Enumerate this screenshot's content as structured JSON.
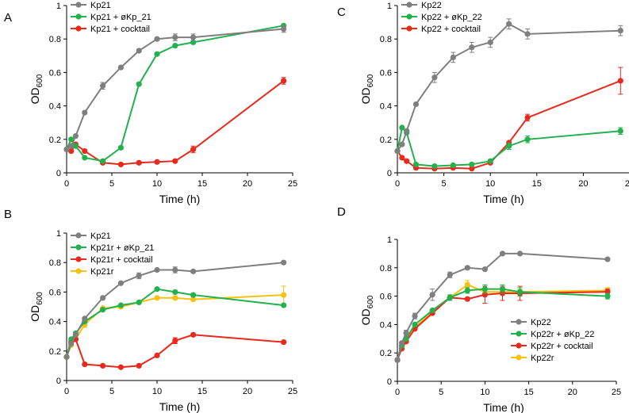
{
  "colors": {
    "grey": "#7f7f7f",
    "green": "#22b14c",
    "red": "#e8291c",
    "yellow": "#f5c211"
  },
  "chart_data": [
    {
      "type": "line",
      "panel": "A",
      "xlabel": "Time (h)",
      "ylabel_main": "OD",
      "ylabel_sub": "600",
      "xlim": [
        0,
        25
      ],
      "ylim": [
        0,
        1
      ],
      "xticks": [
        0,
        5,
        10,
        15,
        20,
        25
      ],
      "yticks": [
        0,
        0.2,
        0.4,
        0.6,
        0.8,
        1
      ],
      "ytick_labels": [
        "0",
        "0.2",
        "0.4",
        "0.6",
        "0.8",
        "1"
      ],
      "legend_position": "top-left",
      "series": [
        {
          "name": "Kp21",
          "color": "#7f7f7f",
          "x": [
            0,
            0.5,
            1,
            2,
            4,
            6,
            8,
            10,
            12,
            14,
            24
          ],
          "y": [
            0.14,
            0.16,
            0.22,
            0.36,
            0.52,
            0.63,
            0.73,
            0.8,
            0.81,
            0.81,
            0.86
          ],
          "err": [
            0,
            0,
            0,
            0,
            0.02,
            0,
            0,
            0,
            0.02,
            0.02,
            0.02
          ]
        },
        {
          "name": "Kp21 + øKp_21",
          "color": "#22b14c",
          "x": [
            0,
            0.5,
            1,
            2,
            4,
            6,
            8,
            10,
            12,
            14,
            24
          ],
          "y": [
            0.14,
            0.2,
            0.16,
            0.09,
            0.07,
            0.15,
            0.53,
            0.71,
            0.76,
            0.78,
            0.88
          ],
          "err": [
            0,
            0,
            0,
            0,
            0,
            0,
            0,
            0,
            0,
            0,
            0
          ]
        },
        {
          "name": "Kp21 + cocktail",
          "color": "#e8291c",
          "x": [
            0,
            0.5,
            1,
            2,
            4,
            6,
            8,
            10,
            12,
            14,
            24
          ],
          "y": [
            0.14,
            0.13,
            0.17,
            0.13,
            0.06,
            0.05,
            0.06,
            0.065,
            0.07,
            0.14,
            0.55
          ],
          "err": [
            0,
            0,
            0,
            0,
            0,
            0,
            0,
            0,
            0,
            0.02,
            0.02
          ]
        }
      ]
    },
    {
      "type": "line",
      "panel": "B",
      "xlabel": "Time (h)",
      "ylabel_main": "OD",
      "ylabel_sub": "600",
      "xlim": [
        0,
        25
      ],
      "ylim": [
        0,
        1
      ],
      "xticks": [
        0,
        5,
        10,
        15,
        20,
        25
      ],
      "yticks": [
        0,
        0.2,
        0.4,
        0.6,
        0.8,
        1
      ],
      "ytick_labels": [
        "0",
        "0.2",
        "0.4",
        "0.6",
        "0.8",
        "1"
      ],
      "legend_position": "top-left",
      "series": [
        {
          "name": "Kp21",
          "color": "#7f7f7f",
          "x": [
            0,
            0.5,
            1,
            2,
            4,
            6,
            8,
            10,
            12,
            14,
            24
          ],
          "y": [
            0.16,
            0.25,
            0.31,
            0.42,
            0.56,
            0.66,
            0.71,
            0.75,
            0.75,
            0.74,
            0.8
          ],
          "err": [
            0,
            0,
            0,
            0,
            0,
            0,
            0.02,
            0,
            0.02,
            0,
            0.01
          ]
        },
        {
          "name": "Kp21r + øKp_21",
          "color": "#22b14c",
          "x": [
            0,
            0.5,
            1,
            2,
            4,
            6,
            8,
            10,
            12,
            14,
            24
          ],
          "y": [
            0.16,
            0.28,
            0.32,
            0.4,
            0.48,
            0.51,
            0.53,
            0.62,
            0.6,
            0.58,
            0.51
          ],
          "err": [
            0,
            0,
            0,
            0,
            0,
            0,
            0,
            0,
            0,
            0,
            0.01
          ]
        },
        {
          "name": "Kp21r + cocktail",
          "color": "#e8291c",
          "x": [
            0,
            0.5,
            1,
            2,
            4,
            6,
            8,
            10,
            12,
            14,
            24
          ],
          "y": [
            0.16,
            0.26,
            0.28,
            0.11,
            0.1,
            0.09,
            0.1,
            0.17,
            0.27,
            0.31,
            0.26
          ],
          "err": [
            0,
            0,
            0,
            0,
            0,
            0,
            0,
            0,
            0.02,
            0,
            0.01
          ]
        },
        {
          "name": "Kp21r",
          "color": "#f5c211",
          "x": [
            0,
            0.5,
            1,
            2,
            4,
            6,
            8,
            10,
            12,
            14,
            24
          ],
          "y": [
            0.16,
            0.24,
            0.28,
            0.38,
            0.49,
            0.5,
            0.53,
            0.56,
            0.56,
            0.55,
            0.58
          ],
          "err": [
            0,
            0,
            0,
            0.02,
            0,
            0,
            0,
            0,
            0.01,
            0.01,
            0.06
          ]
        }
      ]
    },
    {
      "type": "line",
      "panel": "C",
      "xlabel": "Time (h)",
      "ylabel_main": "OD",
      "ylabel_sub": "600",
      "xlim": [
        0,
        25
      ],
      "ylim": [
        0,
        1
      ],
      "xticks": [
        0,
        5,
        10,
        15,
        20,
        25
      ],
      "yticks": [
        0,
        0.2,
        0.4,
        0.6,
        0.8,
        1
      ],
      "ytick_labels": [
        "0",
        "0.2",
        "0.4",
        "0.6",
        "0.8",
        "1"
      ],
      "legend_position": "top-left",
      "series": [
        {
          "name": "Kp22",
          "color": "#7f7f7f",
          "x": [
            0,
            0.5,
            1,
            2,
            4,
            6,
            8,
            10,
            12,
            14,
            24
          ],
          "y": [
            0.13,
            0.17,
            0.25,
            0.41,
            0.57,
            0.69,
            0.75,
            0.78,
            0.89,
            0.83,
            0.85
          ],
          "err": [
            0,
            0,
            0,
            0,
            0.03,
            0.03,
            0.03,
            0.03,
            0.03,
            0.03,
            0.03
          ]
        },
        {
          "name": "Kp22 + øKp_22",
          "color": "#22b14c",
          "x": [
            0,
            0.5,
            1,
            2,
            4,
            6,
            8,
            10,
            12,
            14,
            24
          ],
          "y": [
            0.13,
            0.27,
            0.24,
            0.05,
            0.04,
            0.045,
            0.05,
            0.07,
            0.16,
            0.2,
            0.25
          ],
          "err": [
            0,
            0,
            0,
            0,
            0,
            0,
            0,
            0,
            0.02,
            0.02,
            0.02
          ]
        },
        {
          "name": "Kp22 + cocktail",
          "color": "#e8291c",
          "x": [
            0,
            0.5,
            1,
            2,
            4,
            6,
            8,
            10,
            12,
            14,
            24
          ],
          "y": [
            0.13,
            0.09,
            0.07,
            0.03,
            0.025,
            0.03,
            0.025,
            0.06,
            0.18,
            0.33,
            0.55
          ],
          "err": [
            0,
            0,
            0,
            0,
            0,
            0,
            0,
            0,
            0,
            0.02,
            0.08
          ]
        }
      ]
    },
    {
      "type": "line",
      "panel": "D",
      "xlabel": "Time (h)",
      "ylabel_main": "OD",
      "ylabel_sub": "600",
      "xlim": [
        0,
        25
      ],
      "ylim": [
        0,
        1
      ],
      "xticks": [
        0,
        5,
        10,
        15,
        20,
        25
      ],
      "yticks": [
        0,
        0.2,
        0.4,
        0.6,
        0.8,
        1
      ],
      "ytick_labels": [
        "0",
        "0.2",
        "0.4",
        "0.6",
        "0.8",
        "1"
      ],
      "legend_position": "bottom-right",
      "series": [
        {
          "name": "Kp22",
          "color": "#7f7f7f",
          "x": [
            0,
            0.5,
            1,
            2,
            4,
            6,
            8,
            10,
            12,
            14,
            24
          ],
          "y": [
            0.15,
            0.27,
            0.34,
            0.46,
            0.61,
            0.75,
            0.8,
            0.79,
            0.9,
            0.9,
            0.86
          ],
          "err": [
            0,
            0,
            0.02,
            0.02,
            0.04,
            0.02,
            0.01,
            0,
            0,
            0,
            0
          ]
        },
        {
          "name": "Kp22r + øKp_22",
          "color": "#22b14c",
          "x": [
            0,
            0.5,
            1,
            2,
            4,
            6,
            8,
            10,
            12,
            14,
            24
          ],
          "y": [
            0.15,
            0.25,
            0.3,
            0.4,
            0.5,
            0.59,
            0.64,
            0.65,
            0.65,
            0.63,
            0.6
          ],
          "err": [
            0,
            0,
            0,
            0,
            0,
            0.02,
            0.02,
            0.03,
            0.03,
            0.03,
            0.02
          ]
        },
        {
          "name": "Kp22r  + cocktail",
          "color": "#e8291c",
          "x": [
            0,
            0.5,
            1,
            2,
            4,
            6,
            8,
            10,
            12,
            14,
            24
          ],
          "y": [
            0.15,
            0.23,
            0.28,
            0.37,
            0.48,
            0.59,
            0.58,
            0.61,
            0.62,
            0.62,
            0.63
          ],
          "err": [
            0,
            0,
            0,
            0,
            0,
            0,
            0,
            0.06,
            0.05,
            0.05,
            0.02
          ]
        },
        {
          "name": "Kp22r",
          "color": "#f5c211",
          "x": [
            0,
            0.5,
            1,
            2,
            4,
            6,
            8,
            10,
            12,
            14,
            24
          ],
          "y": [
            0.15,
            0.25,
            0.29,
            0.38,
            0.49,
            0.59,
            0.68,
            0.63,
            0.63,
            0.63,
            0.64
          ],
          "err": [
            0,
            0,
            0,
            0,
            0,
            0,
            0.03,
            0.02,
            0.02,
            0.02,
            0.02
          ]
        }
      ]
    }
  ]
}
